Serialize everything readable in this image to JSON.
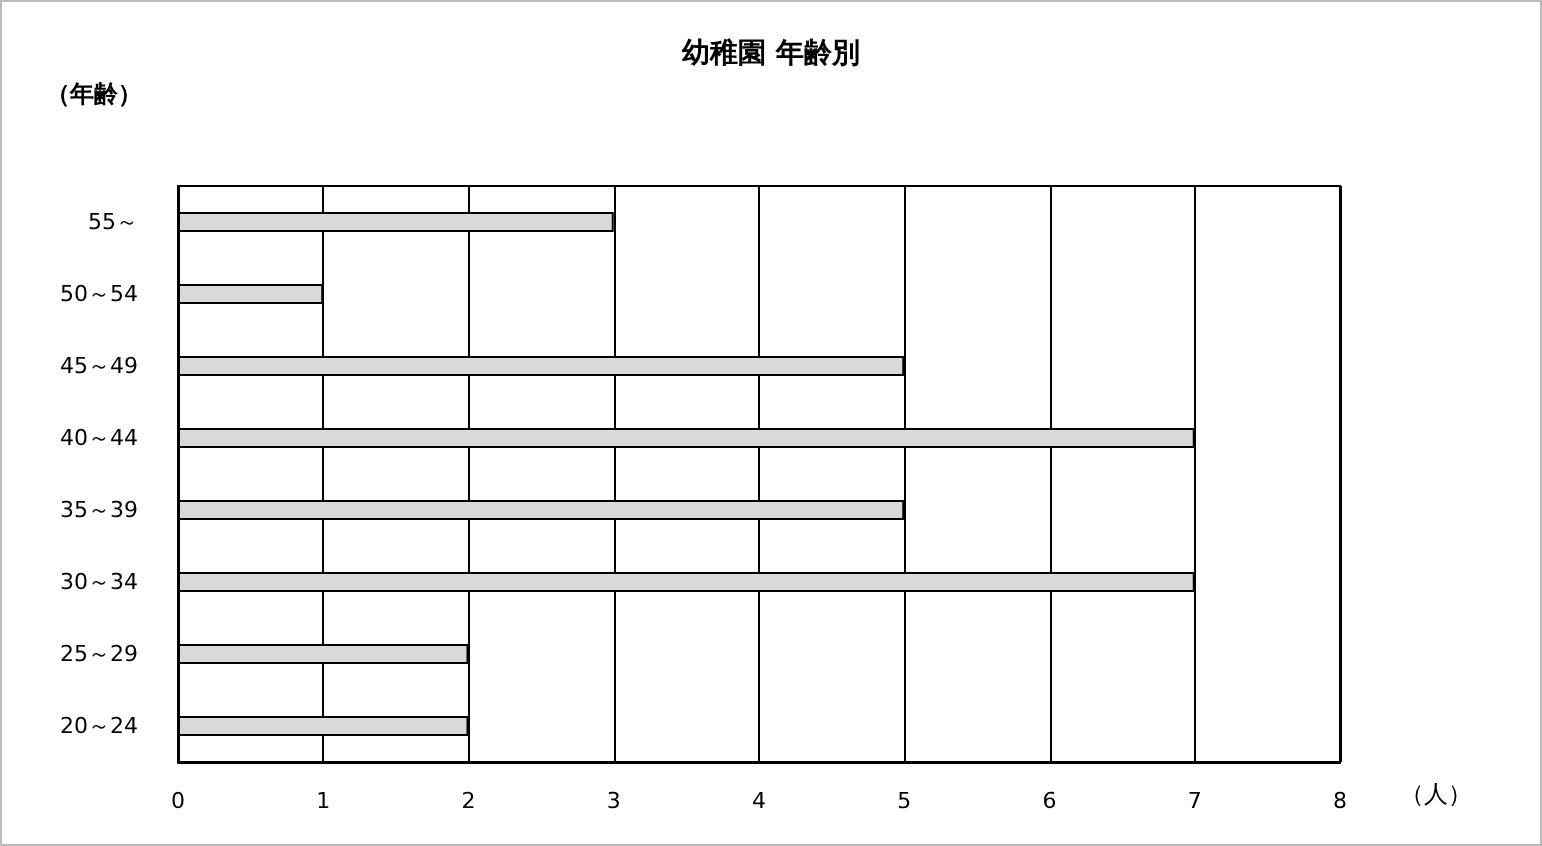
{
  "chart_data": {
    "type": "bar",
    "orientation": "horizontal",
    "title": "幼稚園 年齢別",
    "xlabel": "（人）",
    "ylabel": "（年齢）",
    "categories": [
      "55～",
      "50～54",
      "45～49",
      "40～44",
      "35～39",
      "30～34",
      "25～29",
      "20～24"
    ],
    "values": [
      3,
      1,
      5,
      7,
      5,
      7,
      2,
      2
    ],
    "color": "#d9d9d9",
    "xlim": [
      0,
      8
    ],
    "xticks": [
      0,
      1,
      2,
      3,
      4,
      5,
      6,
      7,
      8
    ],
    "grid": "x"
  }
}
